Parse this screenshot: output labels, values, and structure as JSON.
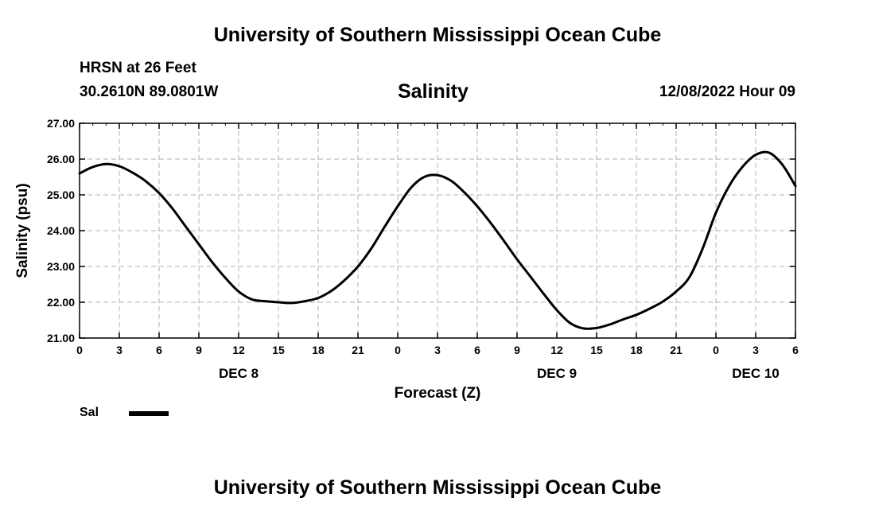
{
  "header": {
    "title": "University of Southern Mississippi Ocean Cube",
    "station": "HRSN at 26 Feet",
    "coordinates": "30.2610N  89.0801W",
    "issued": "12/08/2022 Hour 09"
  },
  "footer": {
    "title": "University of Southern Mississippi Ocean Cube"
  },
  "legend": {
    "label": "Sal",
    "color": "#000000"
  },
  "chart_data": {
    "type": "line",
    "title": "Salinity",
    "xlabel": "Forecast (Z)",
    "ylabel": "Salinity (psu)",
    "xlim": [
      0,
      54
    ],
    "ylim": [
      21,
      27
    ],
    "grid": true,
    "x_tick_values": [
      0,
      3,
      6,
      9,
      12,
      15,
      18,
      21,
      24,
      27,
      30,
      33,
      36,
      39,
      42,
      45,
      48,
      51,
      54
    ],
    "x_tick_labels": [
      "0",
      "3",
      "6",
      "9",
      "12",
      "15",
      "18",
      "21",
      "0",
      "3",
      "6",
      "9",
      "12",
      "15",
      "18",
      "21",
      "0",
      "3",
      "6"
    ],
    "y_tick_values": [
      21,
      22,
      23,
      24,
      25,
      26,
      27
    ],
    "y_tick_labels": [
      "21.00",
      "22.00",
      "23.00",
      "24.00",
      "25.00",
      "26.00",
      "27.00"
    ],
    "day_labels": [
      {
        "x": 12,
        "label": "DEC 8"
      },
      {
        "x": 36,
        "label": "DEC 9"
      },
      {
        "x": 51,
        "label": "DEC 10"
      }
    ],
    "series": [
      {
        "name": "Sal",
        "color": "#000000",
        "x": [
          0,
          1,
          2,
          3,
          4,
          5,
          6,
          7,
          8,
          9,
          10,
          11,
          12,
          13,
          14,
          15,
          16,
          17,
          18,
          19,
          20,
          21,
          22,
          23,
          24,
          25,
          26,
          27,
          28,
          29,
          30,
          31,
          32,
          33,
          34,
          35,
          36,
          37,
          38,
          39,
          40,
          41,
          42,
          43,
          44,
          45,
          46,
          47,
          48,
          49,
          50,
          51,
          52,
          53,
          54
        ],
        "values": [
          25.6,
          25.78,
          25.86,
          25.8,
          25.62,
          25.38,
          25.05,
          24.62,
          24.12,
          23.62,
          23.12,
          22.68,
          22.3,
          22.08,
          22.03,
          22.0,
          21.98,
          22.03,
          22.12,
          22.32,
          22.62,
          23.0,
          23.5,
          24.1,
          24.68,
          25.2,
          25.5,
          25.55,
          25.4,
          25.08,
          24.68,
          24.22,
          23.72,
          23.2,
          22.72,
          22.24,
          21.78,
          21.42,
          21.27,
          21.28,
          21.38,
          21.52,
          21.65,
          21.82,
          22.02,
          22.3,
          22.7,
          23.5,
          24.5,
          25.25,
          25.78,
          26.12,
          26.18,
          25.85,
          25.25
        ]
      }
    ]
  }
}
